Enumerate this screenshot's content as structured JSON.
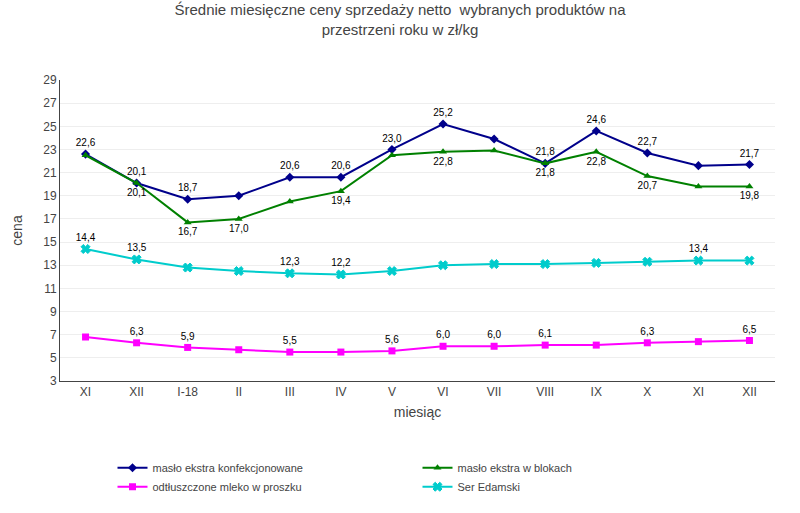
{
  "chart_data": {
    "type": "line",
    "title": "Średnie miesięczne ceny sprzedaży netto  wybranych produktów na\nprzestrzeni roku w zł/kg",
    "y_label": "cena",
    "x_label": "miesiąc",
    "categories": [
      "XI",
      "XII",
      "I-18",
      "II",
      "III",
      "IV",
      "V",
      "VI",
      "VII",
      "VIII",
      "IX",
      "X",
      "XI",
      "XII"
    ],
    "series": [
      {
        "name": "masło ekstra konfekcjonowane",
        "color": "#00008B",
        "marker": "diamond",
        "values": [
          22.6,
          20.1,
          18.7,
          19.0,
          20.6,
          20.6,
          23.0,
          25.2,
          23.9,
          21.8,
          24.6,
          22.7,
          21.6,
          21.7
        ],
        "value_labels": [
          "22,6",
          "20,1",
          "18,7",
          null,
          "20,6",
          "20,6",
          "23,0",
          "25,2",
          null,
          "21,8",
          "24,6",
          "22,7",
          null,
          "21,7"
        ]
      },
      {
        "name": "masło ekstra w blokach",
        "color": "#008000",
        "marker": "triangle-up",
        "values": [
          22.5,
          20.1,
          16.7,
          17.0,
          18.5,
          19.4,
          22.5,
          22.8,
          22.9,
          21.8,
          22.8,
          20.7,
          19.8,
          19.8
        ],
        "value_labels": [
          null,
          "20,1",
          "16,7",
          "17,0",
          null,
          "19,4",
          null,
          "22,8",
          null,
          "21,8",
          "22,8",
          "20,7",
          null,
          "19,8"
        ]
      },
      {
        "name": "odtłuszczone mleko w proszku",
        "color": "#FF00FF",
        "marker": "square",
        "values": [
          6.8,
          6.3,
          5.9,
          5.7,
          5.5,
          5.5,
          5.6,
          6.0,
          6.0,
          6.1,
          6.1,
          6.3,
          6.4,
          6.5
        ],
        "value_labels": [
          null,
          "6,3",
          "5,9",
          null,
          "5,5",
          null,
          "5,6",
          "6,0",
          "6,0",
          "6,1",
          null,
          "6,3",
          null,
          "6,5"
        ]
      },
      {
        "name": "Ser Edamski",
        "color": "#00CCCC",
        "marker": "x",
        "values": [
          14.4,
          13.5,
          12.8,
          12.5,
          12.3,
          12.2,
          12.5,
          13.0,
          13.1,
          13.1,
          13.2,
          13.3,
          13.4,
          13.4
        ],
        "value_labels": [
          "14,4",
          "13,5",
          null,
          null,
          "12,3",
          "12,2",
          null,
          null,
          null,
          null,
          null,
          null,
          "13,4",
          null
        ]
      }
    ],
    "ylim": [
      3,
      29
    ],
    "yticks": [
      3,
      5,
      7,
      9,
      11,
      13,
      15,
      17,
      19,
      21,
      23,
      25,
      27,
      29
    ],
    "grid": true,
    "legend": "bottom",
    "data_labels": true
  }
}
